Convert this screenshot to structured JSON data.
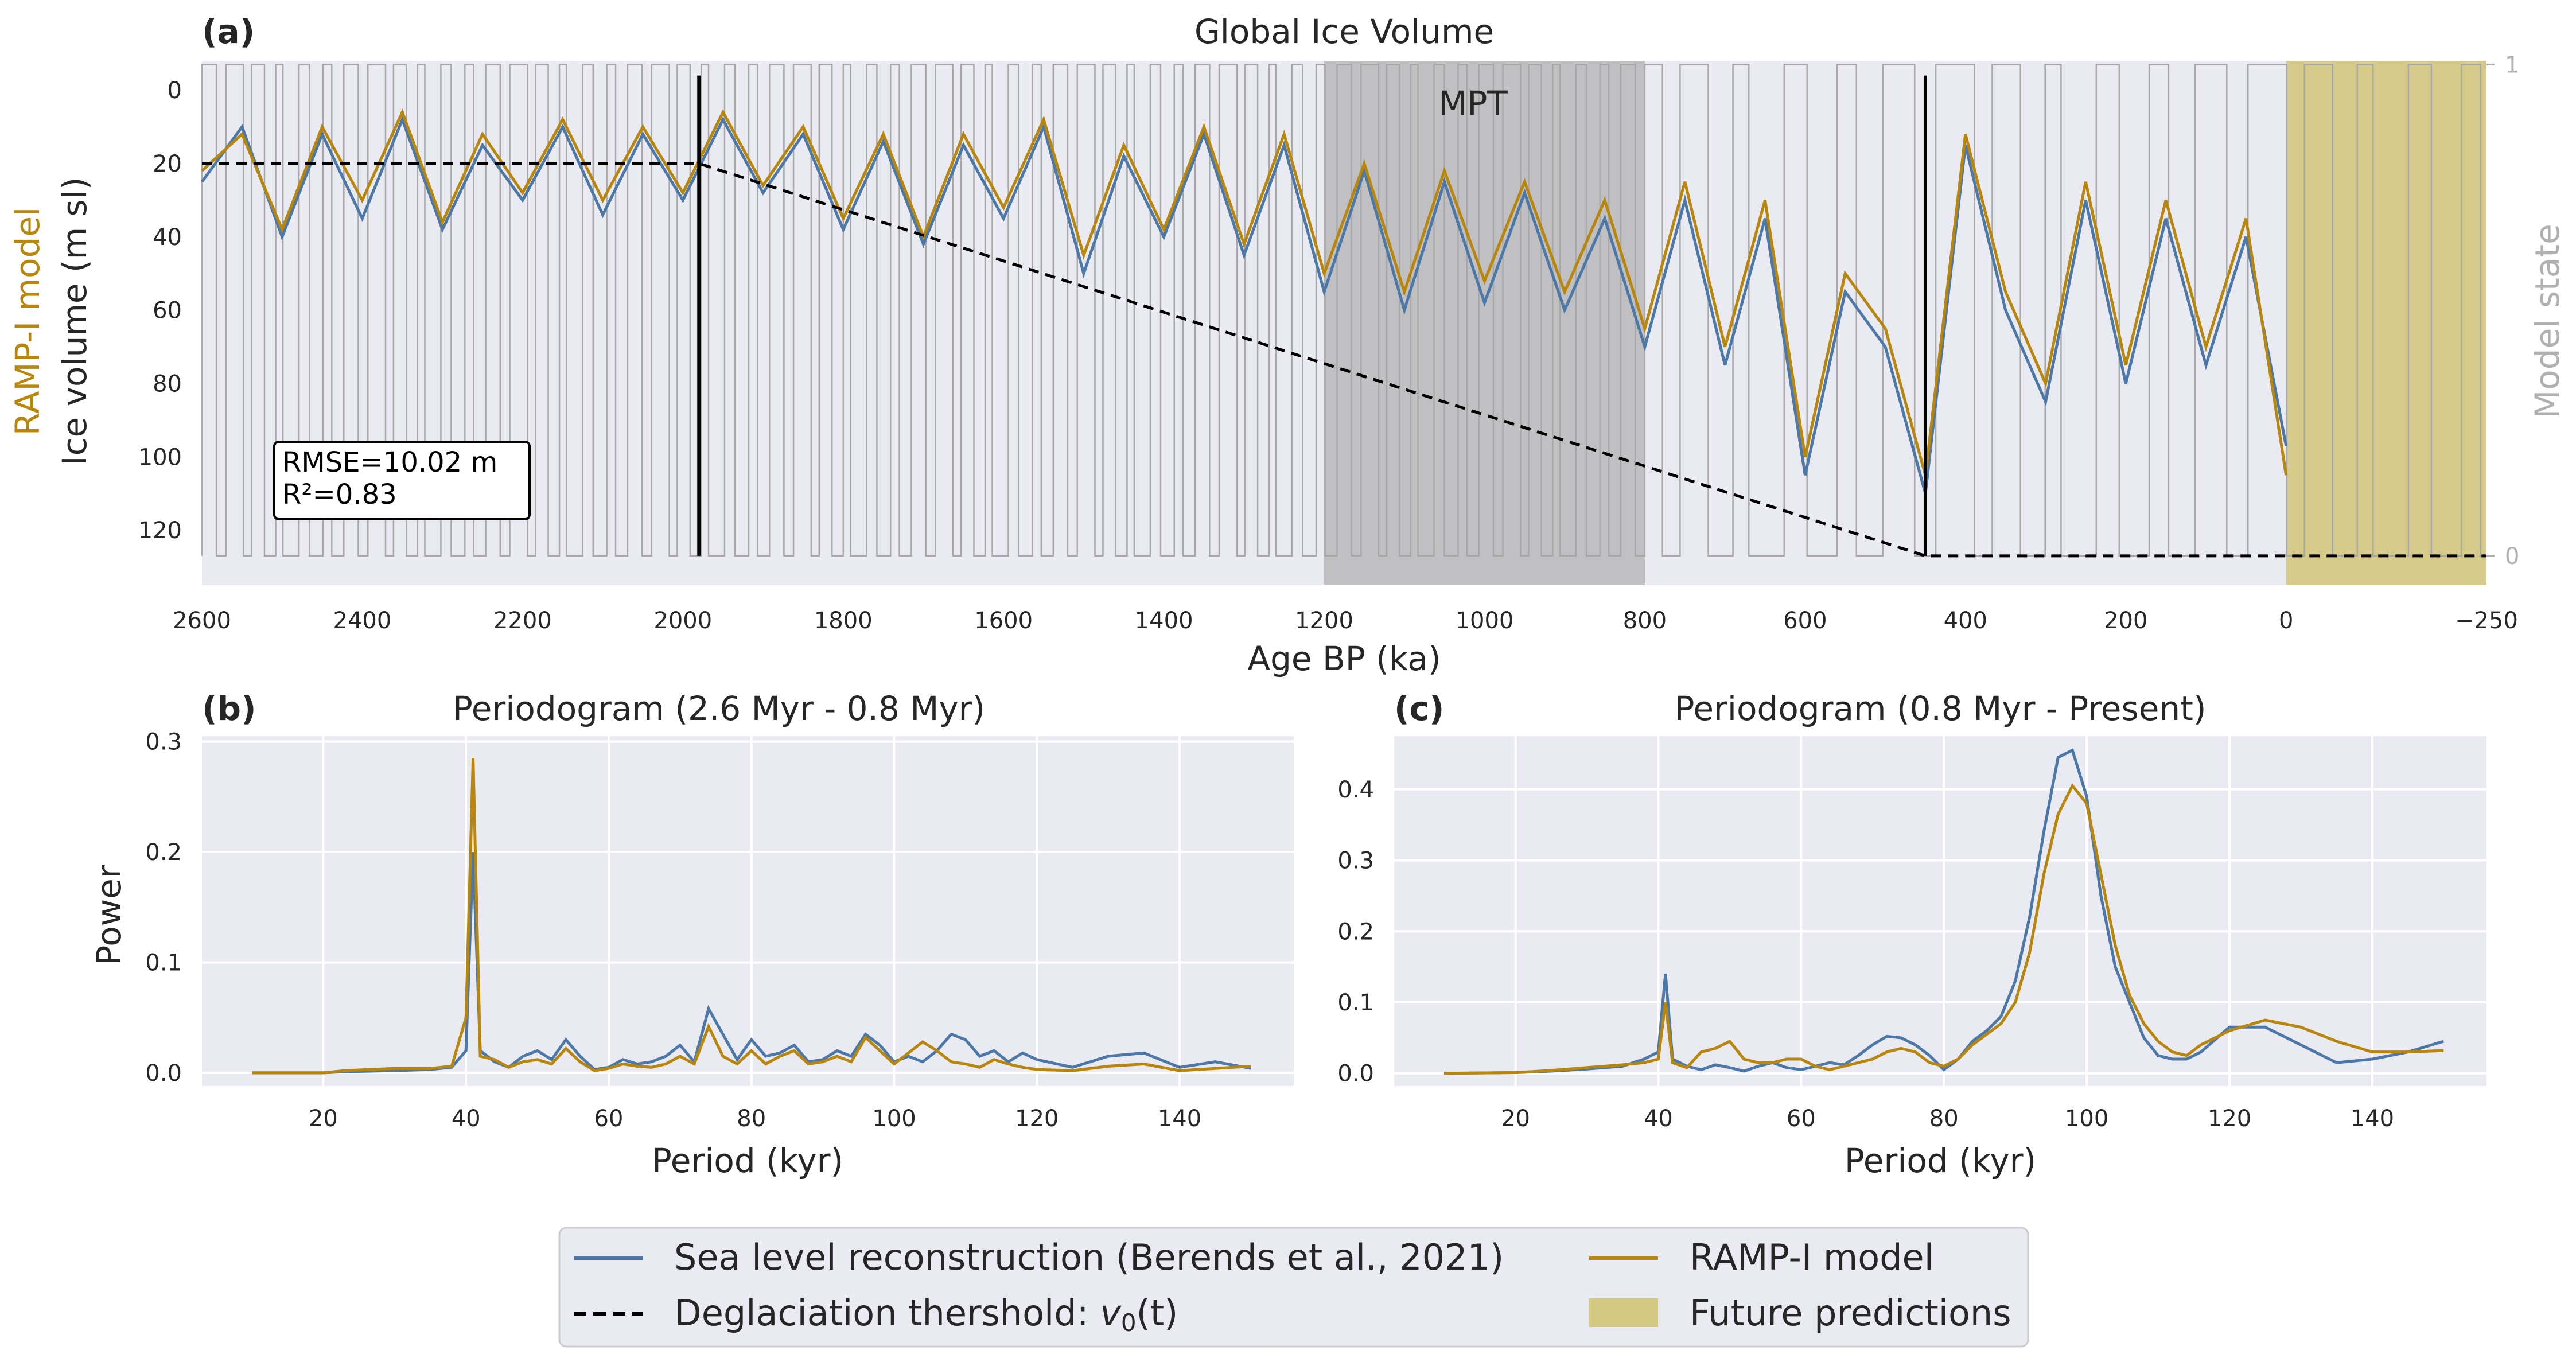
{
  "chart_data": [
    {
      "panel_label": "(a)",
      "type": "line",
      "title": "Global Ice Volume",
      "xlabel": "Age BP (ka)",
      "ylabel": "Ice volume (m sl)",
      "ylabel_model": "RAMP-I model",
      "y2label": "Model state",
      "xlim": [
        2600,
        -250
      ],
      "ylim": [
        135,
        -8
      ],
      "xticks": [
        "2600",
        "2400",
        "2200",
        "2000",
        "1800",
        "1600",
        "1400",
        "1200",
        "1000",
        "800",
        "600",
        "400",
        "200",
        "0",
        "−250"
      ],
      "xtick_values": [
        2600,
        2400,
        2200,
        2000,
        1800,
        1600,
        1400,
        1200,
        1000,
        800,
        600,
        400,
        200,
        0,
        -250
      ],
      "yticks": [
        "0",
        "20",
        "40",
        "60",
        "80",
        "100",
        "120"
      ],
      "ytick_values": [
        0,
        20,
        40,
        60,
        80,
        100,
        120
      ],
      "y2ticks": [
        "1",
        "0"
      ],
      "mpt_label": "MPT",
      "mpt_range": [
        1200,
        800
      ],
      "future_range": [
        0,
        -250
      ],
      "stats_box": [
        "RMSE=10.02 m",
        "R²=0.83"
      ],
      "vertical_lines": [
        1980,
        450
      ],
      "threshold": {
        "x": [
          2600,
          1980,
          450,
          -250
        ],
        "y": [
          20,
          20,
          127,
          127
        ]
      },
      "series": [
        {
          "name": "Sea level reconstruction (Berends et al., 2021)",
          "color": "#4c78a8",
          "role": "reconstruction"
        },
        {
          "name": "RAMP-I model",
          "color": "#b8860b",
          "role": "model"
        },
        {
          "name": "Model state",
          "color": "#a0a0a0",
          "role": "state"
        }
      ],
      "sample_points": {
        "x": [
          2600,
          2550,
          2500,
          2450,
          2400,
          2350,
          2300,
          2250,
          2200,
          2150,
          2100,
          2050,
          2000,
          1950,
          1900,
          1850,
          1800,
          1750,
          1700,
          1650,
          1600,
          1550,
          1500,
          1450,
          1400,
          1350,
          1300,
          1250,
          1200,
          1150,
          1100,
          1050,
          1000,
          950,
          900,
          850,
          800,
          750,
          700,
          650,
          600,
          550,
          500,
          450,
          400,
          350,
          300,
          250,
          200,
          150,
          100,
          50,
          0
        ],
        "reconstruction": [
          25,
          10,
          40,
          12,
          35,
          8,
          38,
          15,
          30,
          10,
          34,
          12,
          30,
          8,
          28,
          12,
          38,
          14,
          42,
          15,
          35,
          10,
          50,
          18,
          40,
          12,
          45,
          15,
          55,
          22,
          60,
          25,
          58,
          28,
          60,
          35,
          70,
          30,
          75,
          35,
          105,
          55,
          70,
          110,
          15,
          60,
          85,
          30,
          80,
          35,
          75,
          40,
          97
        ],
        "model": [
          22,
          12,
          38,
          10,
          30,
          6,
          36,
          12,
          28,
          8,
          30,
          10,
          28,
          6,
          26,
          10,
          35,
          12,
          40,
          12,
          32,
          8,
          45,
          15,
          38,
          10,
          42,
          12,
          50,
          20,
          55,
          22,
          52,
          25,
          55,
          30,
          65,
          25,
          70,
          30,
          100,
          50,
          65,
          105,
          12,
          55,
          80,
          25,
          75,
          30,
          70,
          35,
          105
        ]
      }
    },
    {
      "panel_label": "(b)",
      "type": "line",
      "title": "Periodogram (2.6 Myr - 0.8 Myr)",
      "xlabel": "Period (kyr)",
      "ylabel": "Power",
      "xlim": [
        3,
        156
      ],
      "ylim": [
        -0.012,
        0.305
      ],
      "xticks": [
        "20",
        "40",
        "60",
        "80",
        "100",
        "120",
        "140"
      ],
      "xtick_values": [
        20,
        40,
        60,
        80,
        100,
        120,
        140
      ],
      "yticks": [
        "0.0",
        "0.1",
        "0.2",
        "0.3"
      ],
      "ytick_values": [
        0,
        0.1,
        0.2,
        0.3
      ],
      "x": [
        10,
        20,
        23,
        30,
        35,
        38,
        40,
        41,
        42,
        44,
        46,
        48,
        50,
        52,
        54,
        56,
        58,
        60,
        62,
        64,
        66,
        68,
        70,
        72,
        74,
        76,
        78,
        80,
        82,
        84,
        86,
        88,
        90,
        92,
        94,
        96,
        98,
        100,
        102,
        104,
        106,
        108,
        110,
        112,
        114,
        116,
        118,
        120,
        125,
        130,
        135,
        140,
        145,
        150
      ],
      "series": [
        {
          "name": "Sea level reconstruction (Berends et al., 2021)",
          "values": [
            0,
            0,
            0.001,
            0.002,
            0.003,
            0.005,
            0.02,
            0.2,
            0.02,
            0.01,
            0.005,
            0.015,
            0.02,
            0.012,
            0.03,
            0.015,
            0.003,
            0.005,
            0.012,
            0.008,
            0.01,
            0.015,
            0.025,
            0.01,
            0.058,
            0.035,
            0.012,
            0.03,
            0.015,
            0.018,
            0.025,
            0.01,
            0.012,
            0.02,
            0.015,
            0.035,
            0.025,
            0.01,
            0.015,
            0.01,
            0.02,
            0.035,
            0.03,
            0.015,
            0.02,
            0.01,
            0.018,
            0.012,
            0.005,
            0.015,
            0.018,
            0.005,
            0.01,
            0.004
          ]
        },
        {
          "name": "RAMP-I model",
          "values": [
            0,
            0,
            0.002,
            0.004,
            0.004,
            0.006,
            0.05,
            0.285,
            0.015,
            0.012,
            0.005,
            0.01,
            0.012,
            0.008,
            0.022,
            0.01,
            0.002,
            0.004,
            0.008,
            0.006,
            0.005,
            0.008,
            0.015,
            0.008,
            0.042,
            0.015,
            0.008,
            0.02,
            0.008,
            0.015,
            0.02,
            0.008,
            0.01,
            0.015,
            0.01,
            0.032,
            0.02,
            0.008,
            0.018,
            0.028,
            0.02,
            0.01,
            0.008,
            0.005,
            0.012,
            0.008,
            0.005,
            0.003,
            0.002,
            0.006,
            0.008,
            0.002,
            0.004,
            0.006
          ]
        }
      ]
    },
    {
      "panel_label": "(c)",
      "type": "line",
      "title": "Periodogram (0.8 Myr - Present)",
      "xlabel": "Period (kyr)",
      "ylabel": "",
      "xlim": [
        3,
        156
      ],
      "ylim": [
        -0.018,
        0.475
      ],
      "xticks": [
        "20",
        "40",
        "60",
        "80",
        "100",
        "120",
        "140"
      ],
      "xtick_values": [
        20,
        40,
        60,
        80,
        100,
        120,
        140
      ],
      "yticks": [
        "0.0",
        "0.1",
        "0.2",
        "0.3",
        "0.4"
      ],
      "ytick_values": [
        0,
        0.1,
        0.2,
        0.3,
        0.4
      ],
      "x": [
        10,
        20,
        25,
        30,
        35,
        38,
        40,
        41,
        42,
        44,
        46,
        48,
        50,
        52,
        54,
        56,
        58,
        60,
        62,
        64,
        66,
        68,
        70,
        72,
        74,
        76,
        78,
        80,
        82,
        84,
        86,
        88,
        90,
        92,
        94,
        96,
        98,
        100,
        102,
        104,
        106,
        108,
        110,
        112,
        114,
        116,
        120,
        125,
        130,
        135,
        140,
        145,
        150
      ],
      "series": [
        {
          "name": "Sea level reconstruction (Berends et al., 2021)",
          "values": [
            0,
            0.001,
            0.003,
            0.006,
            0.01,
            0.02,
            0.03,
            0.14,
            0.02,
            0.01,
            0.005,
            0.012,
            0.008,
            0.003,
            0.01,
            0.015,
            0.008,
            0.005,
            0.01,
            0.015,
            0.012,
            0.025,
            0.04,
            0.052,
            0.05,
            0.04,
            0.025,
            0.005,
            0.02,
            0.045,
            0.06,
            0.08,
            0.13,
            0.22,
            0.34,
            0.445,
            0.455,
            0.39,
            0.25,
            0.15,
            0.1,
            0.05,
            0.025,
            0.02,
            0.02,
            0.03,
            0.065,
            0.065,
            0.04,
            0.015,
            0.02,
            0.03,
            0.045
          ]
        },
        {
          "name": "RAMP-I model",
          "values": [
            0,
            0.001,
            0.004,
            0.008,
            0.012,
            0.015,
            0.02,
            0.1,
            0.015,
            0.008,
            0.03,
            0.035,
            0.045,
            0.02,
            0.015,
            0.015,
            0.02,
            0.02,
            0.01,
            0.005,
            0.01,
            0.015,
            0.02,
            0.03,
            0.035,
            0.03,
            0.015,
            0.01,
            0.02,
            0.04,
            0.055,
            0.07,
            0.1,
            0.17,
            0.28,
            0.365,
            0.405,
            0.38,
            0.28,
            0.18,
            0.11,
            0.07,
            0.045,
            0.03,
            0.025,
            0.04,
            0.06,
            0.075,
            0.065,
            0.045,
            0.03,
            0.03,
            0.032
          ]
        }
      ]
    }
  ],
  "legend": {
    "items": [
      {
        "label": "Sea level reconstruction (Berends et al., 2021)",
        "color": "#4c78a8",
        "kind": "line"
      },
      {
        "label": "RAMP-I model",
        "color": "#b8860b",
        "kind": "line"
      },
      {
        "label_prefix": "Deglaciation thershold: ",
        "label_math": "v",
        "label_sub": "0",
        "label_suffix": "(t)",
        "color": "#000000",
        "kind": "dashed"
      },
      {
        "label": "Future predictions",
        "color": "#d4c77f",
        "kind": "patch"
      }
    ]
  }
}
